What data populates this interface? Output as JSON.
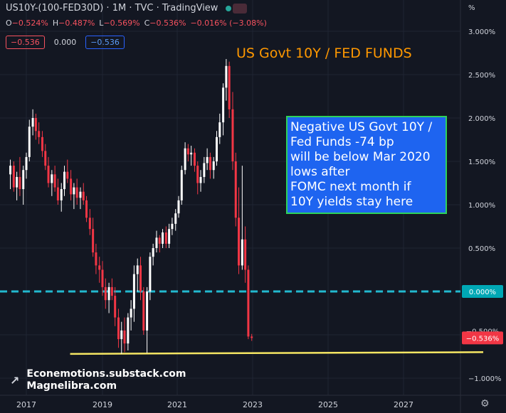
{
  "header": {
    "symbol_line": "US10Y-(100-FED30D) · 1M · TVC · TradingView",
    "ohlc": [
      {
        "k": "O",
        "v": "−0.524%"
      },
      {
        "k": "H",
        "v": "−0.487%"
      },
      {
        "k": "L",
        "v": "−0.569%"
      },
      {
        "k": "C",
        "v": "−0.536%"
      },
      {
        "k": "",
        "v": "−0.016% (−3.08%)"
      }
    ],
    "boxes": {
      "sell": "−0.536",
      "mid": "0.000",
      "buy": "−0.536"
    }
  },
  "y_unit": "%",
  "title": "US Govt 10Y / FED FUNDS",
  "annotation": [
    "Negative US Govt 10Y /",
    "Fed Funds -74 bp",
    "will be below Mar 2020",
    "lows after",
    "FOMC next month if",
    "10Y yields stay here"
  ],
  "watermark": [
    "Econemotions.substack.com",
    "Magnelibra.com"
  ],
  "colors": {
    "up": "#ffffff",
    "down": "#f23645",
    "zero_line": "#22b8cf",
    "support": "#f5e663",
    "title": "#ff9800",
    "box_bg": "#1e64f0",
    "box_border": "#2ed35a"
  },
  "chart_data": {
    "type": "candlestick",
    "x_ticks": [
      "2017",
      "2019",
      "2021",
      "2023",
      "2025",
      "2027"
    ],
    "y_ticks": [
      "3.000%",
      "2.500%",
      "2.000%",
      "1.500%",
      "1.000%",
      "0.500%",
      "0.000%",
      "−0.500%",
      "−1.000%"
    ],
    "y_tick_values": [
      3.0,
      2.5,
      2.0,
      1.5,
      1.0,
      0.5,
      0.0,
      -0.5,
      -1.0
    ],
    "ylim": [
      -1.13,
      3.25
    ],
    "xlim": [
      2016.55,
      2029.25
    ],
    "last_value_label": "−0.536%",
    "zero_label": "0.000%",
    "zero_line_value": 0.0,
    "support_line": {
      "x": [
        2018.15,
        2029.0
      ],
      "y": [
        -0.72,
        -0.7
      ]
    },
    "candles": [
      {
        "t": 2016.58,
        "o": 1.35,
        "h": 1.52,
        "l": 1.18,
        "c": 1.45
      },
      {
        "t": 2016.67,
        "o": 1.45,
        "h": 1.5,
        "l": 1.15,
        "c": 1.2
      },
      {
        "t": 2016.75,
        "o": 1.2,
        "h": 1.38,
        "l": 1.05,
        "c": 1.32
      },
      {
        "t": 2016.83,
        "o": 1.32,
        "h": 1.55,
        "l": 1.1,
        "c": 1.18
      },
      {
        "t": 2016.92,
        "o": 1.18,
        "h": 1.45,
        "l": 1.0,
        "c": 1.4
      },
      {
        "t": 2017.0,
        "o": 1.4,
        "h": 1.6,
        "l": 1.3,
        "c": 1.55
      },
      {
        "t": 2017.08,
        "o": 1.55,
        "h": 1.98,
        "l": 1.5,
        "c": 1.9
      },
      {
        "t": 2017.17,
        "o": 1.9,
        "h": 2.1,
        "l": 1.8,
        "c": 2.0
      },
      {
        "t": 2017.25,
        "o": 2.0,
        "h": 2.05,
        "l": 1.75,
        "c": 1.85
      },
      {
        "t": 2017.33,
        "o": 1.85,
        "h": 1.95,
        "l": 1.7,
        "c": 1.78
      },
      {
        "t": 2017.42,
        "o": 1.78,
        "h": 1.85,
        "l": 1.55,
        "c": 1.62
      },
      {
        "t": 2017.5,
        "o": 1.62,
        "h": 1.7,
        "l": 1.4,
        "c": 1.45
      },
      {
        "t": 2017.58,
        "o": 1.45,
        "h": 1.55,
        "l": 1.2,
        "c": 1.25
      },
      {
        "t": 2017.67,
        "o": 1.25,
        "h": 1.4,
        "l": 1.1,
        "c": 1.35
      },
      {
        "t": 2017.75,
        "o": 1.35,
        "h": 1.45,
        "l": 1.15,
        "c": 1.2
      },
      {
        "t": 2017.83,
        "o": 1.2,
        "h": 1.3,
        "l": 1.0,
        "c": 1.05
      },
      {
        "t": 2017.92,
        "o": 1.05,
        "h": 1.25,
        "l": 0.92,
        "c": 1.18
      },
      {
        "t": 2018.0,
        "o": 1.18,
        "h": 1.45,
        "l": 1.1,
        "c": 1.38
      },
      {
        "t": 2018.08,
        "o": 1.38,
        "h": 1.52,
        "l": 1.25,
        "c": 1.3
      },
      {
        "t": 2018.17,
        "o": 1.3,
        "h": 1.4,
        "l": 1.05,
        "c": 1.12
      },
      {
        "t": 2018.25,
        "o": 1.12,
        "h": 1.25,
        "l": 0.95,
        "c": 1.2
      },
      {
        "t": 2018.33,
        "o": 1.2,
        "h": 1.3,
        "l": 1.0,
        "c": 1.08
      },
      {
        "t": 2018.42,
        "o": 1.08,
        "h": 1.2,
        "l": 0.95,
        "c": 1.15
      },
      {
        "t": 2018.5,
        "o": 1.15,
        "h": 1.25,
        "l": 1.0,
        "c": 1.05
      },
      {
        "t": 2018.58,
        "o": 1.05,
        "h": 1.1,
        "l": 0.8,
        "c": 0.85
      },
      {
        "t": 2018.67,
        "o": 0.85,
        "h": 0.95,
        "l": 0.65,
        "c": 0.72
      },
      {
        "t": 2018.75,
        "o": 0.72,
        "h": 0.85,
        "l": 0.4,
        "c": 0.45
      },
      {
        "t": 2018.83,
        "o": 0.45,
        "h": 0.55,
        "l": 0.2,
        "c": 0.3
      },
      {
        "t": 2018.92,
        "o": 0.3,
        "h": 0.4,
        "l": 0.1,
        "c": 0.25
      },
      {
        "t": 2019.0,
        "o": 0.25,
        "h": 0.35,
        "l": -0.05,
        "c": 0.05
      },
      {
        "t": 2019.08,
        "o": 0.05,
        "h": 0.15,
        "l": -0.2,
        "c": -0.1
      },
      {
        "t": 2019.17,
        "o": -0.1,
        "h": 0.1,
        "l": -0.25,
        "c": 0.05
      },
      {
        "t": 2019.25,
        "o": 0.05,
        "h": 0.15,
        "l": -0.1,
        "c": -0.05
      },
      {
        "t": 2019.33,
        "o": -0.05,
        "h": 0.05,
        "l": -0.4,
        "c": -0.3
      },
      {
        "t": 2019.42,
        "o": -0.3,
        "h": -0.2,
        "l": -0.65,
        "c": -0.55
      },
      {
        "t": 2019.5,
        "o": -0.55,
        "h": -0.35,
        "l": -0.72,
        "c": -0.45
      },
      {
        "t": 2019.58,
        "o": -0.45,
        "h": -0.3,
        "l": -0.7,
        "c": -0.6
      },
      {
        "t": 2019.67,
        "o": -0.6,
        "h": -0.25,
        "l": -0.68,
        "c": -0.3
      },
      {
        "t": 2019.75,
        "o": -0.3,
        "h": -0.1,
        "l": -0.45,
        "c": -0.2
      },
      {
        "t": 2019.83,
        "o": -0.2,
        "h": 0.3,
        "l": -0.35,
        "c": 0.2
      },
      {
        "t": 2019.92,
        "o": 0.2,
        "h": 0.38,
        "l": 0.0,
        "c": 0.3
      },
      {
        "t": 2020.0,
        "o": 0.3,
        "h": 0.4,
        "l": -0.1,
        "c": 0.0
      },
      {
        "t": 2020.08,
        "o": 0.0,
        "h": 0.05,
        "l": -0.5,
        "c": -0.45
      },
      {
        "t": 2020.17,
        "o": -0.45,
        "h": 0.05,
        "l": -0.71,
        "c": 0.0
      },
      {
        "t": 2020.25,
        "o": 0.0,
        "h": 0.45,
        "l": -0.1,
        "c": 0.4
      },
      {
        "t": 2020.33,
        "o": 0.4,
        "h": 0.55,
        "l": 0.3,
        "c": 0.5
      },
      {
        "t": 2020.42,
        "o": 0.5,
        "h": 0.7,
        "l": 0.45,
        "c": 0.62
      },
      {
        "t": 2020.5,
        "o": 0.62,
        "h": 0.65,
        "l": 0.45,
        "c": 0.55
      },
      {
        "t": 2020.58,
        "o": 0.55,
        "h": 0.72,
        "l": 0.5,
        "c": 0.68
      },
      {
        "t": 2020.67,
        "o": 0.68,
        "h": 0.75,
        "l": 0.5,
        "c": 0.55
      },
      {
        "t": 2020.75,
        "o": 0.55,
        "h": 0.78,
        "l": 0.5,
        "c": 0.72
      },
      {
        "t": 2020.83,
        "o": 0.72,
        "h": 0.85,
        "l": 0.65,
        "c": 0.78
      },
      {
        "t": 2020.92,
        "o": 0.78,
        "h": 0.95,
        "l": 0.7,
        "c": 0.9
      },
      {
        "t": 2021.0,
        "o": 0.9,
        "h": 1.1,
        "l": 0.85,
        "c": 1.05
      },
      {
        "t": 2021.08,
        "o": 1.05,
        "h": 1.45,
        "l": 1.0,
        "c": 1.4
      },
      {
        "t": 2021.17,
        "o": 1.4,
        "h": 1.72,
        "l": 1.35,
        "c": 1.65
      },
      {
        "t": 2021.25,
        "o": 1.65,
        "h": 1.7,
        "l": 1.5,
        "c": 1.58
      },
      {
        "t": 2021.33,
        "o": 1.58,
        "h": 1.68,
        "l": 1.45,
        "c": 1.6
      },
      {
        "t": 2021.42,
        "o": 1.6,
        "h": 1.65,
        "l": 1.38,
        "c": 1.45
      },
      {
        "t": 2021.5,
        "o": 1.45,
        "h": 1.5,
        "l": 1.12,
        "c": 1.25
      },
      {
        "t": 2021.58,
        "o": 1.25,
        "h": 1.4,
        "l": 1.15,
        "c": 1.32
      },
      {
        "t": 2021.67,
        "o": 1.32,
        "h": 1.55,
        "l": 1.25,
        "c": 1.48
      },
      {
        "t": 2021.75,
        "o": 1.48,
        "h": 1.65,
        "l": 1.4,
        "c": 1.55
      },
      {
        "t": 2021.83,
        "o": 1.55,
        "h": 1.6,
        "l": 1.3,
        "c": 1.4
      },
      {
        "t": 2021.92,
        "o": 1.4,
        "h": 1.55,
        "l": 1.3,
        "c": 1.5
      },
      {
        "t": 2022.0,
        "o": 1.5,
        "h": 1.85,
        "l": 1.45,
        "c": 1.78
      },
      {
        "t": 2022.08,
        "o": 1.78,
        "h": 2.05,
        "l": 1.7,
        "c": 1.95
      },
      {
        "t": 2022.17,
        "o": 1.95,
        "h": 2.4,
        "l": 1.8,
        "c": 2.35
      },
      {
        "t": 2022.25,
        "o": 2.35,
        "h": 2.68,
        "l": 2.2,
        "c": 2.6
      },
      {
        "t": 2022.33,
        "o": 2.6,
        "h": 2.65,
        "l": 2.0,
        "c": 2.1
      },
      {
        "t": 2022.42,
        "o": 2.1,
        "h": 2.3,
        "l": 1.4,
        "c": 1.5
      },
      {
        "t": 2022.5,
        "o": 1.5,
        "h": 1.6,
        "l": 0.75,
        "c": 0.85
      },
      {
        "t": 2022.58,
        "o": 0.85,
        "h": 1.2,
        "l": 0.2,
        "c": 0.3
      },
      {
        "t": 2022.67,
        "o": 0.3,
        "h": 1.45,
        "l": 0.25,
        "c": 0.6
      },
      {
        "t": 2022.75,
        "o": 0.6,
        "h": 0.75,
        "l": 0.1,
        "c": 0.25
      },
      {
        "t": 2022.83,
        "o": 0.25,
        "h": 0.3,
        "l": -0.55,
        "c": -0.52
      },
      {
        "t": 2022.92,
        "o": -0.52,
        "h": -0.49,
        "l": -0.57,
        "c": -0.536
      }
    ]
  }
}
